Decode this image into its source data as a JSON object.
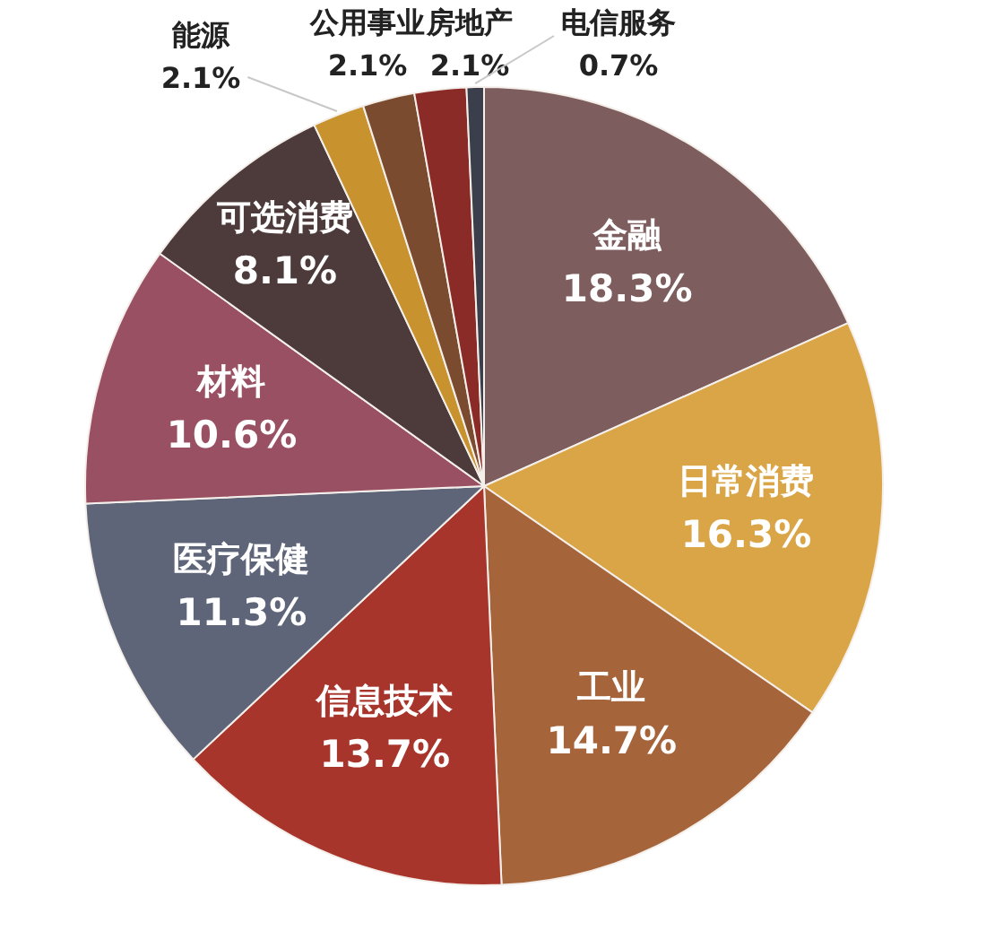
{
  "chart_data": {
    "type": "pie",
    "categories": [
      "金融",
      "日常消费",
      "工业",
      "信息技术",
      "医疗保健",
      "材料",
      "可选消费",
      "能源",
      "公用事业",
      "房地产",
      "电信服务"
    ],
    "values": [
      18.3,
      16.3,
      14.7,
      13.7,
      11.3,
      10.6,
      8.1,
      2.1,
      2.1,
      2.1,
      0.7
    ],
    "colors": [
      "#7d5d5d",
      "#daa546",
      "#a5643a",
      "#a8352c",
      "#5e6579",
      "#9a5063",
      "#4d3a3a",
      "#c8922e",
      "#7b4b2f",
      "#8a2b27",
      "#3b3f4c"
    ],
    "value_labels": [
      "18.3%",
      "16.3%",
      "14.7%",
      "13.7%",
      "11.3%",
      "10.6%",
      "8.1%",
      "2.1%",
      "2.1%",
      "2.1%",
      "0.7%"
    ]
  }
}
